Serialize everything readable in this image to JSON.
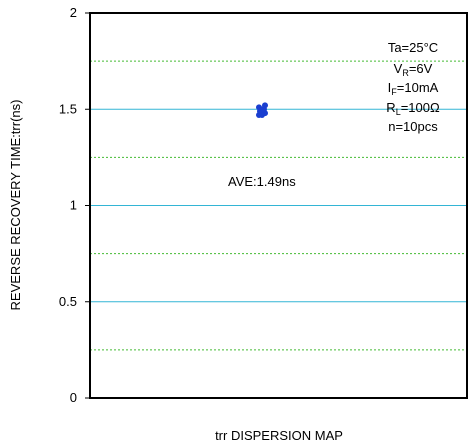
{
  "chart_data": {
    "type": "scatter",
    "title": "",
    "xlabel": "trr DISPERSION MAP",
    "ylabel": "REVERSE RECOVERY TIME:trr(ns)",
    "ylim": [
      0,
      2
    ],
    "yticks": [
      "0",
      "0.5",
      "1",
      "1.5",
      "2"
    ],
    "major_grid": [
      0.5,
      1,
      1.5
    ],
    "minor_grid": [
      0.25,
      0.75,
      1.25,
      1.75
    ],
    "grid": true,
    "conditions": {
      "ta": "Ta=25°C",
      "vr_main": "V",
      "vr_sub": "R",
      "vr_val": "=6V",
      "if_main": "I",
      "if_sub": "F",
      "if_val": "=10mA",
      "rl_main": "R",
      "rl_sub": "L",
      "rl_val": "=100Ω",
      "n": "n=10pcs"
    },
    "annotation": "AVE:1.49ns",
    "series": [
      {
        "values": [
          1.47,
          1.48,
          1.49,
          1.5,
          1.51,
          1.52,
          1.48,
          1.49,
          1.5,
          1.47
        ]
      }
    ],
    "colors": {
      "major_grid": "#33b5d5",
      "minor_grid": "#44bb33",
      "points": "#1a3fd0",
      "frame": "#000000"
    }
  }
}
